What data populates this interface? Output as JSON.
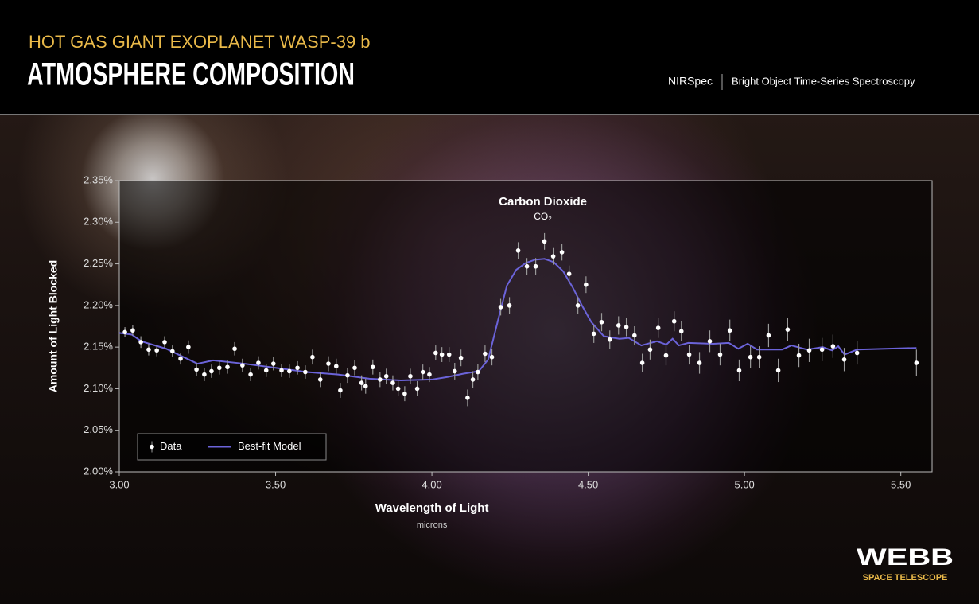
{
  "header": {
    "kicker": "HOT GAS GIANT EXOPLANET WASP-39 b",
    "title": "ATMOSPHERE COMPOSITION",
    "instrument": "NIRSpec",
    "mode": "Bright Object Time-Series Spectroscopy"
  },
  "logo": {
    "name": "WEBB",
    "subtitle": "SPACE TELESCOPE"
  },
  "chart_data": {
    "type": "scatter",
    "ylabel": "Amount of Light Blocked",
    "xlabel": "Wavelength of Light",
    "xunit": "microns",
    "annotation": {
      "title": "Carbon Dioxide",
      "formula": "CO₂",
      "x": 4.36
    },
    "xlim": [
      3.0,
      5.6
    ],
    "ylim": [
      2.0,
      2.35
    ],
    "xticks": [
      {
        "value": 3.0,
        "label": "3.00"
      },
      {
        "value": 3.5,
        "label": "3.50"
      },
      {
        "value": 4.0,
        "label": "4.00"
      },
      {
        "value": 4.5,
        "label": "4.50"
      },
      {
        "value": 5.0,
        "label": "5.00"
      },
      {
        "value": 5.5,
        "label": "5.50"
      }
    ],
    "yticks": [
      {
        "value": 2.0,
        "label": "2.00%"
      },
      {
        "value": 2.05,
        "label": "2.05%"
      },
      {
        "value": 2.1,
        "label": "2.10%"
      },
      {
        "value": 2.15,
        "label": "2.15%"
      },
      {
        "value": 2.2,
        "label": "2.20%"
      },
      {
        "value": 2.25,
        "label": "2.25%"
      },
      {
        "value": 2.3,
        "label": "2.30%"
      },
      {
        "value": 2.35,
        "label": "2.35%"
      }
    ],
    "legend": "lower left",
    "series": [
      {
        "name": "Data",
        "type": "scatter",
        "color": "#ffffff",
        "x": [
          3.018,
          3.043,
          3.069,
          3.094,
          3.12,
          3.145,
          3.17,
          3.196,
          3.221,
          3.247,
          3.272,
          3.295,
          3.32,
          3.346,
          3.369,
          3.394,
          3.42,
          3.445,
          3.47,
          3.493,
          3.519,
          3.544,
          3.57,
          3.595,
          3.618,
          3.643,
          3.669,
          3.694,
          3.707,
          3.73,
          3.753,
          3.775,
          3.788,
          3.811,
          3.834,
          3.854,
          3.875,
          3.892,
          3.913,
          3.931,
          3.953,
          3.971,
          3.992,
          4.012,
          4.032,
          4.055,
          4.073,
          4.093,
          4.114,
          4.131,
          4.147,
          4.17,
          4.192,
          4.22,
          4.248,
          4.276,
          4.304,
          4.332,
          4.36,
          4.388,
          4.416,
          4.439,
          4.467,
          4.493,
          4.518,
          4.543,
          4.569,
          4.597,
          4.622,
          4.648,
          4.673,
          4.698,
          4.724,
          4.749,
          4.775,
          4.798,
          4.823,
          4.856,
          4.889,
          4.922,
          4.953,
          4.983,
          5.019,
          5.047,
          5.077,
          5.108,
          5.138,
          5.174,
          5.207,
          5.248,
          5.283,
          5.319,
          5.36,
          5.55
        ],
        "values": [
          2.168,
          2.17,
          2.156,
          2.147,
          2.146,
          2.156,
          2.145,
          2.136,
          2.15,
          2.123,
          2.117,
          2.121,
          2.125,
          2.126,
          2.148,
          2.128,
          2.117,
          2.131,
          2.122,
          2.13,
          2.122,
          2.121,
          2.125,
          2.12,
          2.138,
          2.111,
          2.13,
          2.127,
          2.098,
          2.116,
          2.125,
          2.107,
          2.103,
          2.126,
          2.111,
          2.115,
          2.107,
          2.1,
          2.094,
          2.115,
          2.1,
          2.12,
          2.117,
          2.143,
          2.141,
          2.141,
          2.121,
          2.137,
          2.089,
          2.111,
          2.12,
          2.142,
          2.138,
          2.198,
          2.2,
          2.266,
          2.247,
          2.247,
          2.277,
          2.259,
          2.264,
          2.238,
          2.2,
          2.225,
          2.166,
          2.18,
          2.159,
          2.176,
          2.174,
          2.164,
          2.131,
          2.147,
          2.173,
          2.14,
          2.181,
          2.169,
          2.141,
          2.131,
          2.157,
          2.141,
          2.17,
          2.122,
          2.138,
          2.138,
          2.164,
          2.122,
          2.171,
          2.14,
          2.146,
          2.147,
          2.151,
          2.135,
          2.143,
          2.131
        ],
        "errors": [
          0.006,
          0.006,
          0.007,
          0.007,
          0.007,
          0.007,
          0.007,
          0.007,
          0.008,
          0.008,
          0.008,
          0.008,
          0.008,
          0.008,
          0.008,
          0.008,
          0.008,
          0.008,
          0.008,
          0.008,
          0.008,
          0.008,
          0.008,
          0.008,
          0.009,
          0.009,
          0.009,
          0.009,
          0.009,
          0.009,
          0.009,
          0.009,
          0.009,
          0.009,
          0.009,
          0.009,
          0.009,
          0.009,
          0.009,
          0.009,
          0.009,
          0.009,
          0.009,
          0.009,
          0.009,
          0.009,
          0.01,
          0.01,
          0.01,
          0.01,
          0.01,
          0.01,
          0.01,
          0.01,
          0.01,
          0.01,
          0.01,
          0.01,
          0.01,
          0.01,
          0.01,
          0.01,
          0.01,
          0.01,
          0.011,
          0.011,
          0.011,
          0.011,
          0.011,
          0.011,
          0.011,
          0.012,
          0.012,
          0.012,
          0.012,
          0.012,
          0.012,
          0.013,
          0.013,
          0.013,
          0.013,
          0.013,
          0.013,
          0.013,
          0.014,
          0.014,
          0.014,
          0.014,
          0.014,
          0.014,
          0.014,
          0.014,
          0.014,
          0.016
        ]
      },
      {
        "name": "Best-fit Model",
        "type": "line",
        "color": "#6b63d9",
        "x": [
          3.0,
          3.04,
          3.07,
          3.15,
          3.25,
          3.3,
          3.4,
          3.5,
          3.6,
          3.7,
          3.8,
          3.9,
          4.0,
          4.05,
          4.1,
          4.15,
          4.18,
          4.21,
          4.24,
          4.27,
          4.3,
          4.33,
          4.36,
          4.39,
          4.42,
          4.45,
          4.48,
          4.51,
          4.55,
          4.6,
          4.63,
          4.67,
          4.72,
          4.75,
          4.77,
          4.79,
          4.82,
          4.9,
          4.95,
          4.98,
          5.01,
          5.04,
          5.12,
          5.15,
          5.2,
          5.25,
          5.28,
          5.3,
          5.32,
          5.36,
          5.55
        ],
        "values": [
          2.167,
          2.165,
          2.157,
          2.148,
          2.13,
          2.134,
          2.13,
          2.125,
          2.12,
          2.117,
          2.112,
          2.11,
          2.111,
          2.114,
          2.118,
          2.121,
          2.135,
          2.18,
          2.224,
          2.243,
          2.251,
          2.255,
          2.256,
          2.252,
          2.241,
          2.222,
          2.2,
          2.18,
          2.163,
          2.16,
          2.161,
          2.152,
          2.157,
          2.153,
          2.16,
          2.152,
          2.155,
          2.154,
          2.155,
          2.148,
          2.154,
          2.147,
          2.147,
          2.152,
          2.147,
          2.15,
          2.146,
          2.151,
          2.141,
          2.147,
          2.149
        ]
      }
    ]
  }
}
